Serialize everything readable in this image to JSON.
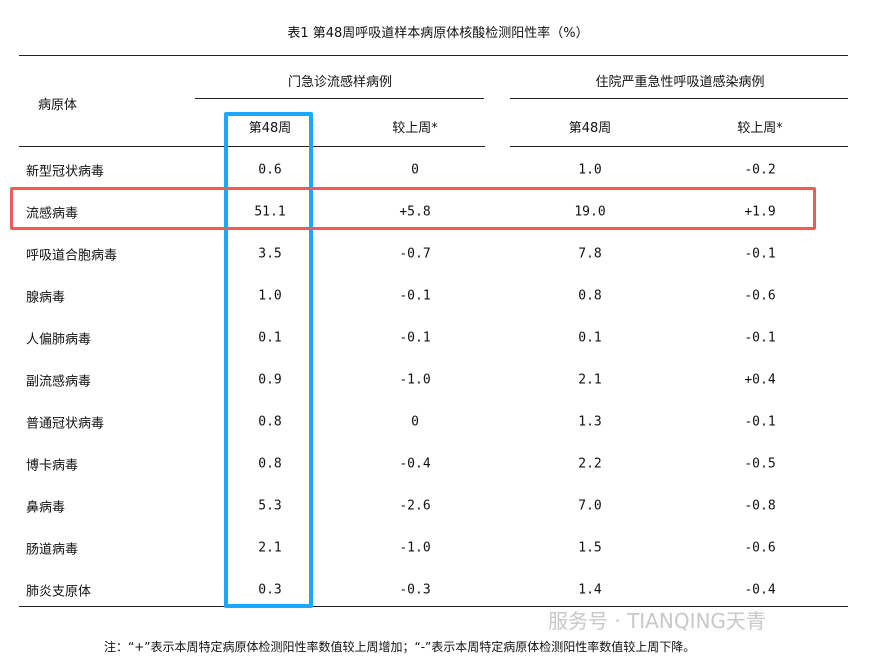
{
  "title": "表1  第48周呼吸道样本病原体核酸检测阳性率（%）",
  "header": {
    "pathogen": "病原体",
    "group1": "门急诊流感样病例",
    "group2": "住院严重急性呼吸道感染病例",
    "week": "第48周",
    "change": "较上周*"
  },
  "rows": [
    {
      "name": "新型冠状病毒",
      "v": [
        "0.6",
        "0",
        "1.0",
        "-0.2"
      ]
    },
    {
      "name": "流感病毒",
      "v": [
        "51.1",
        "+5.8",
        "19.0",
        "+1.9"
      ]
    },
    {
      "name": "呼吸道合胞病毒",
      "v": [
        "3.5",
        "-0.7",
        "7.8",
        "-0.1"
      ]
    },
    {
      "name": "腺病毒",
      "v": [
        "1.0",
        "-0.1",
        "0.8",
        "-0.6"
      ]
    },
    {
      "name": "人偏肺病毒",
      "v": [
        "0.1",
        "-0.1",
        "0.1",
        "-0.1"
      ]
    },
    {
      "name": "副流感病毒",
      "v": [
        "0.9",
        "-1.0",
        "2.1",
        "+0.4"
      ]
    },
    {
      "name": "普通冠状病毒",
      "v": [
        "0.8",
        "0",
        "1.3",
        "-0.1"
      ]
    },
    {
      "name": "博卡病毒",
      "v": [
        "0.8",
        "-0.4",
        "2.2",
        "-0.5"
      ]
    },
    {
      "name": "鼻病毒",
      "v": [
        "5.3",
        "-2.6",
        "7.0",
        "-0.8"
      ]
    },
    {
      "name": "肠道病毒",
      "v": [
        "2.1",
        "-1.0",
        "1.5",
        "-0.6"
      ]
    },
    {
      "name": "肺炎支原体",
      "v": [
        "0.3",
        "-0.3",
        "1.4",
        "-0.4"
      ]
    }
  ],
  "note": "注：“+”表示本周特定病原体检测阳性率数值较上周增加；“-”表示本周特定病原体检测阳性率数值较上周下降。",
  "watermark": "服务号 · TIANQING天青",
  "highlight_colors": {
    "column": "#1aa8ff",
    "row": "#f25a5a"
  }
}
